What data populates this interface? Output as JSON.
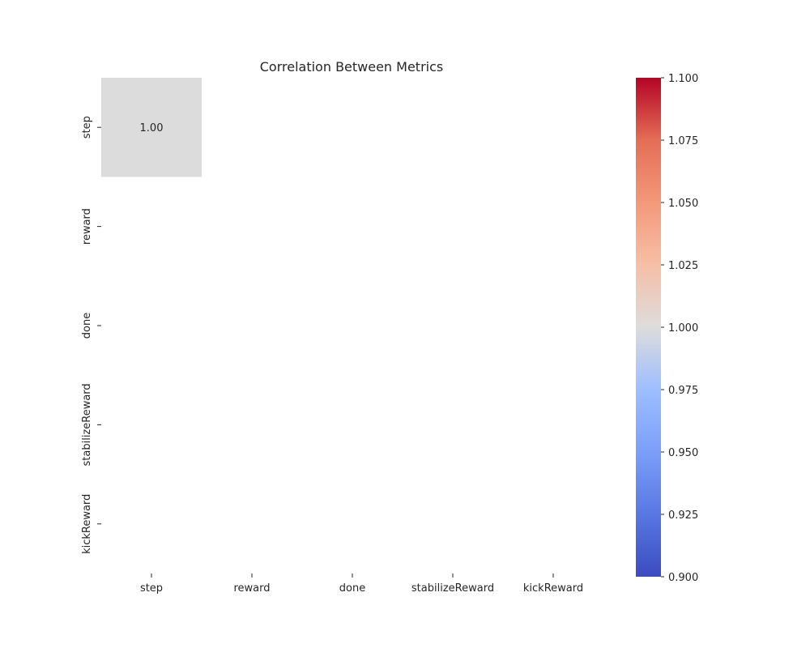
{
  "chart_data": {
    "type": "heatmap",
    "title": "Correlation Between Metrics",
    "xlabel": "",
    "ylabel": "",
    "x_labels": [
      "step",
      "reward",
      "done",
      "stabilizeReward",
      "kickReward"
    ],
    "y_labels": [
      "step",
      "reward",
      "done",
      "stabilizeReward",
      "kickReward"
    ],
    "matrix": [
      [
        1.0,
        null,
        null,
        null,
        null
      ],
      [
        null,
        null,
        null,
        null,
        null
      ],
      [
        null,
        null,
        null,
        null,
        null
      ],
      [
        null,
        null,
        null,
        null,
        null
      ],
      [
        null,
        null,
        null,
        null,
        null
      ]
    ],
    "annotation_format": "0.00",
    "colormap": "coolwarm",
    "colorbar": {
      "vmin": 0.9,
      "vmax": 1.1,
      "ticks": [
        "0.900",
        "0.925",
        "0.950",
        "0.975",
        "1.000",
        "1.025",
        "1.050",
        "1.075",
        "1.100"
      ]
    }
  }
}
